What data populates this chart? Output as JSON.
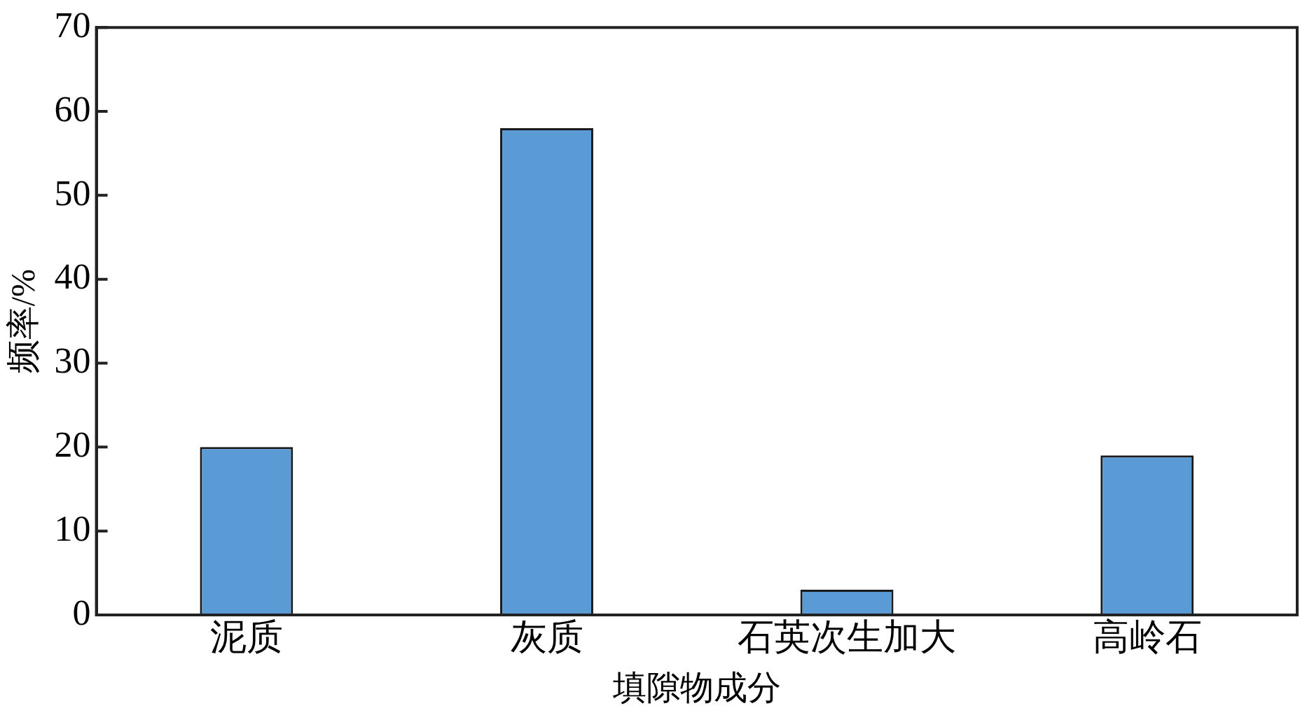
{
  "chart_data": {
    "type": "bar",
    "xlabel": "填隙物成分",
    "ylabel": "频率/%",
    "categories": [
      "泥质",
      "灰质",
      "石英次生加大",
      "高岭石"
    ],
    "values": [
      20,
      58,
      3,
      19
    ],
    "color": "#5b9bd5",
    "ylim": [
      0,
      70
    ],
    "yticks": [
      0,
      10,
      20,
      30,
      40,
      50,
      60,
      70
    ]
  }
}
